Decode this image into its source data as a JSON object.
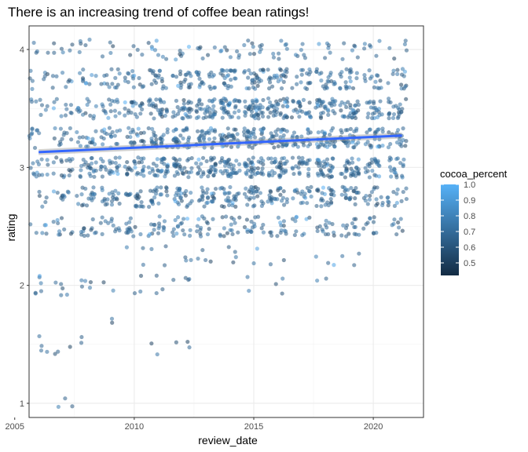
{
  "chart_data": {
    "type": "scatter",
    "title": "There is an increasing trend of coffee bean ratings!",
    "xlabel": "review_date",
    "ylabel": "rating",
    "xlim": [
      2005.6,
      2022.1
    ],
    "ylim": [
      0.88,
      4.2
    ],
    "x_ticks": [
      {
        "value": 2005,
        "label": "2005"
      },
      {
        "value": 2010,
        "label": "2010"
      },
      {
        "value": 2015,
        "label": "2015"
      },
      {
        "value": 2020,
        "label": "2020"
      }
    ],
    "y_ticks": [
      {
        "value": 1,
        "label": "1"
      },
      {
        "value": 2,
        "label": "2"
      },
      {
        "value": 3,
        "label": "3"
      },
      {
        "value": 4,
        "label": "4"
      }
    ],
    "grid": true,
    "point_style": {
      "size": 2.6,
      "alpha": 0.55
    },
    "point_groups": [
      {
        "year": 2006,
        "counts": {
          "1.0": 0,
          "1.5": 4,
          "1.75": 0,
          "2.0": 6,
          "2.25": 0,
          "2.5": 6,
          "2.75": 5,
          "3.0": 14,
          "3.25": 10,
          "3.5": 8,
          "3.75": 8,
          "4.0": 4
        }
      },
      {
        "year": 2007,
        "counts": {
          "1.0": 3,
          "1.5": 3,
          "1.75": 0,
          "2.0": 5,
          "2.25": 0,
          "2.5": 10,
          "2.75": 10,
          "3.0": 16,
          "3.25": 12,
          "3.5": 10,
          "3.75": 8,
          "4.0": 6
        }
      },
      {
        "year": 2008,
        "counts": {
          "1.0": 0,
          "1.5": 2,
          "1.75": 0,
          "2.0": 5,
          "2.25": 0,
          "2.5": 12,
          "2.75": 18,
          "3.0": 22,
          "3.25": 16,
          "3.5": 14,
          "3.75": 10,
          "4.0": 5
        }
      },
      {
        "year": 2009,
        "counts": {
          "1.0": 0,
          "1.5": 0,
          "1.75": 2,
          "2.0": 2,
          "2.25": 0,
          "2.5": 12,
          "2.75": 20,
          "3.0": 24,
          "3.25": 18,
          "3.5": 16,
          "3.75": 14,
          "4.0": 4
        }
      },
      {
        "year": 2010,
        "counts": {
          "1.0": 0,
          "1.5": 0,
          "1.75": 0,
          "2.0": 3,
          "2.25": 3,
          "2.5": 14,
          "2.75": 20,
          "3.0": 26,
          "3.25": 20,
          "3.5": 20,
          "3.75": 14,
          "4.0": 4
        }
      },
      {
        "year": 2011,
        "counts": {
          "1.0": 0,
          "1.5": 2,
          "1.75": 0,
          "2.0": 3,
          "2.25": 3,
          "2.5": 16,
          "2.75": 22,
          "3.0": 30,
          "3.25": 28,
          "3.5": 28,
          "3.75": 18,
          "4.0": 8
        }
      },
      {
        "year": 2012,
        "counts": {
          "1.0": 0,
          "1.5": 3,
          "1.75": 0,
          "2.0": 4,
          "2.25": 3,
          "2.5": 16,
          "2.75": 24,
          "3.0": 30,
          "3.25": 30,
          "3.5": 28,
          "3.75": 20,
          "4.0": 6
        }
      },
      {
        "year": 2013,
        "counts": {
          "1.0": 0,
          "1.5": 0,
          "1.75": 0,
          "2.0": 0,
          "2.25": 4,
          "2.5": 14,
          "2.75": 24,
          "3.0": 32,
          "3.25": 32,
          "3.5": 34,
          "3.75": 20,
          "4.0": 6
        }
      },
      {
        "year": 2014,
        "counts": {
          "1.0": 0,
          "1.5": 0,
          "1.75": 0,
          "2.0": 0,
          "2.25": 4,
          "2.5": 16,
          "2.75": 26,
          "3.0": 34,
          "3.25": 34,
          "3.5": 36,
          "3.75": 24,
          "4.0": 8
        }
      },
      {
        "year": 2015,
        "counts": {
          "1.0": 0,
          "1.5": 0,
          "1.75": 0,
          "2.0": 2,
          "2.25": 2,
          "2.5": 16,
          "2.75": 26,
          "3.0": 36,
          "3.25": 38,
          "3.5": 40,
          "3.75": 26,
          "4.0": 10
        }
      },
      {
        "year": 2016,
        "counts": {
          "1.0": 0,
          "1.5": 0,
          "1.75": 0,
          "2.0": 3,
          "2.25": 2,
          "2.5": 14,
          "2.75": 24,
          "3.0": 34,
          "3.25": 36,
          "3.5": 36,
          "3.75": 24,
          "4.0": 8
        }
      },
      {
        "year": 2017,
        "counts": {
          "1.0": 0,
          "1.5": 0,
          "1.75": 0,
          "2.0": 0,
          "2.25": 0,
          "2.5": 10,
          "2.75": 18,
          "3.0": 24,
          "3.25": 24,
          "3.5": 24,
          "3.75": 16,
          "4.0": 6
        }
      },
      {
        "year": 2018,
        "counts": {
          "1.0": 0,
          "1.5": 0,
          "1.75": 0,
          "2.0": 2,
          "2.25": 3,
          "2.5": 14,
          "2.75": 24,
          "3.0": 34,
          "3.25": 32,
          "3.5": 32,
          "3.75": 20,
          "4.0": 6
        }
      },
      {
        "year": 2019,
        "counts": {
          "1.0": 0,
          "1.5": 0,
          "1.75": 0,
          "2.0": 0,
          "2.25": 3,
          "2.5": 14,
          "2.75": 22,
          "3.0": 30,
          "3.25": 30,
          "3.5": 30,
          "3.75": 20,
          "4.0": 6
        }
      },
      {
        "year": 2020,
        "counts": {
          "1.0": 0,
          "1.5": 0,
          "1.75": 0,
          "2.0": 0,
          "2.25": 0,
          "2.5": 10,
          "2.75": 16,
          "3.0": 22,
          "3.25": 22,
          "3.5": 22,
          "3.75": 14,
          "4.0": 6
        }
      },
      {
        "year": 2021,
        "counts": {
          "1.0": 0,
          "1.5": 0,
          "1.75": 0,
          "2.0": 0,
          "2.25": 0,
          "2.5": 8,
          "2.75": 14,
          "3.0": 20,
          "3.25": 22,
          "3.5": 22,
          "3.75": 14,
          "4.0": 5
        }
      }
    ],
    "trend_line": {
      "method": "lm",
      "color": "#3366FF",
      "x": [
        2006,
        2021.2
      ],
      "y": [
        3.13,
        3.27
      ],
      "se_band": [
        0.025,
        0.025
      ]
    },
    "legend": {
      "title": "cocoa_percent",
      "position": "right",
      "range": [
        0.42,
        1.0
      ],
      "color_low": "#132B43",
      "color_high": "#56B1F7",
      "ticks": [
        {
          "value": 1.0,
          "label": "1.0"
        },
        {
          "value": 0.9,
          "label": "0.9"
        },
        {
          "value": 0.8,
          "label": "0.8"
        },
        {
          "value": 0.7,
          "label": "0.7"
        },
        {
          "value": 0.6,
          "label": "0.6"
        },
        {
          "value": 0.5,
          "label": "0.5"
        }
      ]
    }
  }
}
